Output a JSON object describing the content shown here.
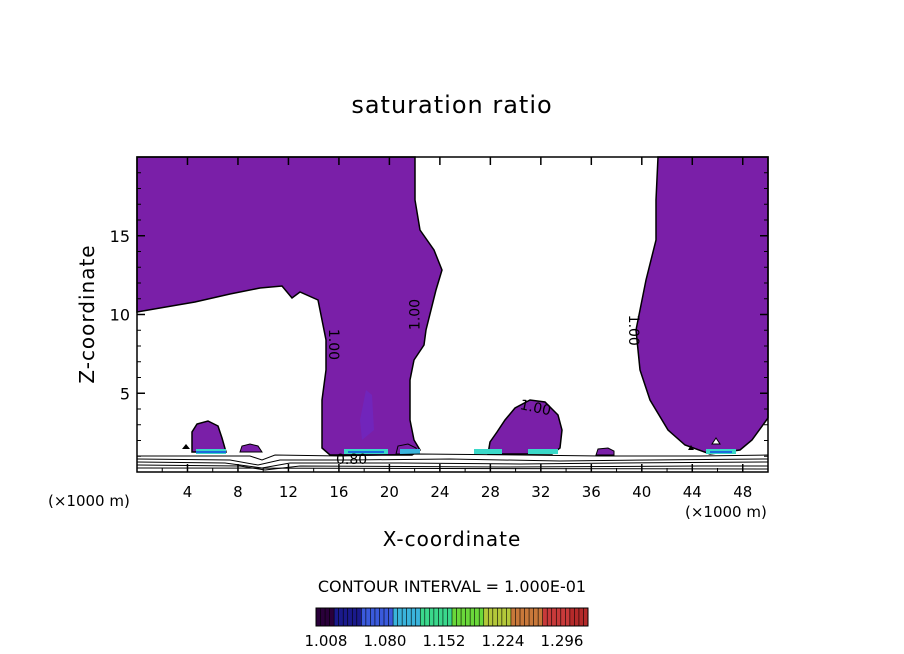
{
  "chart_data": {
    "type": "heatmap",
    "title": "saturation ratio",
    "xlabel": "X-coordinate",
    "ylabel": "Z-coordinate",
    "x_unit_left": "(×1000 m)",
    "x_unit_right": "(×1000 m)",
    "xlim": [
      0,
      50
    ],
    "ylim": [
      0,
      20
    ],
    "x_ticks": [
      4,
      8,
      12,
      16,
      20,
      24,
      28,
      32,
      36,
      40,
      44,
      48
    ],
    "y_ticks": [
      5,
      10,
      15
    ],
    "contour_labels": [
      {
        "text": "1.00",
        "x": 15.2,
        "z": 8.1,
        "rotate": 90
      },
      {
        "text": "1.00",
        "x": 22.4,
        "z": 10.0,
        "rotate": -90
      },
      {
        "text": "1.00",
        "x": 31.5,
        "z": 3.8,
        "rotate": 12
      },
      {
        "text": "1.00",
        "x": 39.0,
        "z": 9.0,
        "rotate": 90
      },
      {
        "text": "0.80",
        "x": 17.0,
        "z": 0.5,
        "rotate": 0
      }
    ],
    "contour_interval_text": "CONTOUR INTERVAL = 1.000E-01",
    "colorbar": {
      "labels": [
        "1.008",
        "1.080",
        "1.152",
        "1.224",
        "1.296"
      ],
      "colors": [
        "#2a003a",
        "#1a1a8c",
        "#3a5adc",
        "#3ab4dc",
        "#3ad88c",
        "#6ad83a",
        "#b4c83a",
        "#c8783a",
        "#c83a3a",
        "#b42a2a"
      ]
    },
    "fill_color": "#7a1fa8",
    "background_color": "#ffffff"
  }
}
